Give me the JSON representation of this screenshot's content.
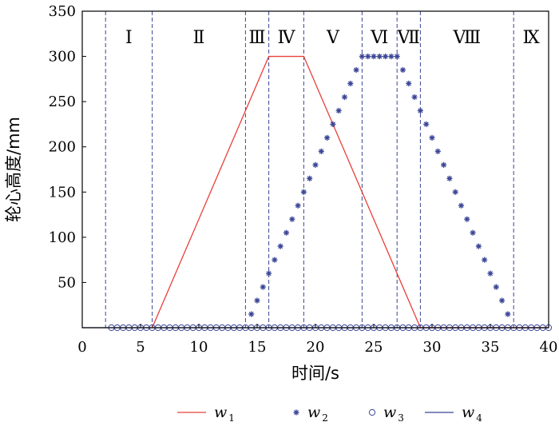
{
  "chart_data": {
    "type": "line",
    "xlabel": "时间/s",
    "ylabel": "轮心高度/mm",
    "xlim": [
      0,
      40
    ],
    "ylim": [
      0,
      350
    ],
    "x_ticks": [
      0,
      5,
      10,
      15,
      20,
      25,
      30,
      35,
      40
    ],
    "y_ticks": [
      50,
      100,
      150,
      200,
      250,
      300,
      350
    ],
    "y_tick_labels": [
      "50",
      "100",
      "150",
      "200",
      "250",
      "300",
      "350"
    ],
    "x_tick_labels": [
      "0",
      "5",
      "10",
      "15",
      "20",
      "25",
      "30",
      "35",
      "40"
    ],
    "grid": false,
    "legend_position": "bottom",
    "phases": [
      {
        "label": "Ⅰ",
        "start": 2,
        "end": 6
      },
      {
        "label": "Ⅱ",
        "start": 6,
        "end": 14
      },
      {
        "label": "Ⅲ",
        "start": 14,
        "end": 16
      },
      {
        "label": "Ⅳ",
        "start": 16,
        "end": 19
      },
      {
        "label": "Ⅴ",
        "start": 19,
        "end": 24
      },
      {
        "label": "Ⅵ",
        "start": 24,
        "end": 27
      },
      {
        "label": "Ⅶ",
        "start": 27,
        "end": 29
      },
      {
        "label": "Ⅷ",
        "start": 29,
        "end": 37
      },
      {
        "label": "Ⅸ",
        "start": 37,
        "end": 40
      }
    ],
    "phase_boundaries": [
      2,
      6,
      14,
      16,
      19,
      24,
      27,
      29,
      37
    ],
    "series": [
      {
        "name": "w",
        "subscript": "1",
        "style": "line",
        "color": "#e8403a",
        "points": [
          [
            6,
            0
          ],
          [
            16,
            300
          ],
          [
            19,
            300
          ],
          [
            29,
            0
          ],
          [
            40,
            0
          ]
        ]
      },
      {
        "name": "w",
        "subscript": "2",
        "style": "star",
        "color": "#3a4596",
        "points": [
          [
            14.5,
            15
          ],
          [
            15,
            30
          ],
          [
            15.5,
            45
          ],
          [
            16,
            60
          ],
          [
            16.5,
            75
          ],
          [
            17,
            90
          ],
          [
            17.5,
            105
          ],
          [
            18,
            120
          ],
          [
            18.5,
            135
          ],
          [
            19,
            150
          ],
          [
            19.5,
            165
          ],
          [
            20,
            180
          ],
          [
            20.5,
            195
          ],
          [
            21,
            210
          ],
          [
            21.5,
            225
          ],
          [
            22,
            240
          ],
          [
            22.5,
            255
          ],
          [
            23,
            270
          ],
          [
            23.5,
            285
          ],
          [
            24,
            300
          ],
          [
            24.5,
            300
          ],
          [
            25,
            300
          ],
          [
            25.5,
            300
          ],
          [
            26,
            300
          ],
          [
            26.5,
            300
          ],
          [
            27,
            300
          ],
          [
            27.5,
            285
          ],
          [
            28,
            270
          ],
          [
            28.5,
            255
          ],
          [
            29,
            240
          ],
          [
            29.5,
            225
          ],
          [
            30,
            210
          ],
          [
            30.5,
            195
          ],
          [
            31,
            180
          ],
          [
            31.5,
            165
          ],
          [
            32,
            150
          ],
          [
            32.5,
            135
          ],
          [
            33,
            120
          ],
          [
            33.5,
            105
          ],
          [
            34,
            90
          ],
          [
            34.5,
            75
          ],
          [
            35,
            60
          ],
          [
            35.5,
            45
          ],
          [
            36,
            30
          ],
          [
            36.5,
            15
          ]
        ]
      },
      {
        "name": "w",
        "subscript": "3",
        "style": "circle",
        "color": "#3a4596",
        "points": [
          [
            2.5,
            0
          ],
          [
            3,
            0
          ],
          [
            3.5,
            0
          ],
          [
            4,
            0
          ],
          [
            4.5,
            0
          ],
          [
            5,
            0
          ],
          [
            5.5,
            0
          ],
          [
            6,
            0
          ],
          [
            6.5,
            0
          ],
          [
            7,
            0
          ],
          [
            7.5,
            0
          ],
          [
            8,
            0
          ],
          [
            8.5,
            0
          ],
          [
            9,
            0
          ],
          [
            9.5,
            0
          ],
          [
            10,
            0
          ],
          [
            10.5,
            0
          ],
          [
            11,
            0
          ],
          [
            11.5,
            0
          ],
          [
            12,
            0
          ],
          [
            12.5,
            0
          ],
          [
            13,
            0
          ],
          [
            13.5,
            0
          ],
          [
            14,
            0
          ],
          [
            14.5,
            0
          ],
          [
            15,
            0
          ],
          [
            15.5,
            0
          ],
          [
            16,
            0
          ],
          [
            16.5,
            0
          ],
          [
            17,
            0
          ],
          [
            17.5,
            0
          ],
          [
            18,
            0
          ],
          [
            18.5,
            0
          ],
          [
            19,
            0
          ],
          [
            19.5,
            0
          ],
          [
            20,
            0
          ],
          [
            20.5,
            0
          ],
          [
            21,
            0
          ],
          [
            21.5,
            0
          ],
          [
            22,
            0
          ],
          [
            22.5,
            0
          ],
          [
            23,
            0
          ],
          [
            23.5,
            0
          ],
          [
            24,
            0
          ],
          [
            24.5,
            0
          ],
          [
            25,
            0
          ],
          [
            25.5,
            0
          ],
          [
            26,
            0
          ],
          [
            26.5,
            0
          ],
          [
            27,
            0
          ],
          [
            27.5,
            0
          ],
          [
            28,
            0
          ],
          [
            28.5,
            0
          ],
          [
            29,
            0
          ],
          [
            29.5,
            0
          ],
          [
            30,
            0
          ],
          [
            30.5,
            0
          ],
          [
            31,
            0
          ],
          [
            31.5,
            0
          ],
          [
            32,
            0
          ],
          [
            32.5,
            0
          ],
          [
            33,
            0
          ],
          [
            33.5,
            0
          ],
          [
            34,
            0
          ],
          [
            34.5,
            0
          ],
          [
            35,
            0
          ],
          [
            35.5,
            0
          ],
          [
            36,
            0
          ],
          [
            36.5,
            0
          ],
          [
            37,
            0
          ],
          [
            37.5,
            0
          ],
          [
            38,
            0
          ],
          [
            38.5,
            0
          ],
          [
            39,
            0
          ],
          [
            39.5,
            0
          ],
          [
            40,
            0
          ]
        ]
      },
      {
        "name": "w",
        "subscript": "4",
        "style": "line",
        "color": "#3a4596",
        "points": [
          [
            0,
            0
          ],
          [
            40,
            0
          ]
        ]
      }
    ]
  }
}
